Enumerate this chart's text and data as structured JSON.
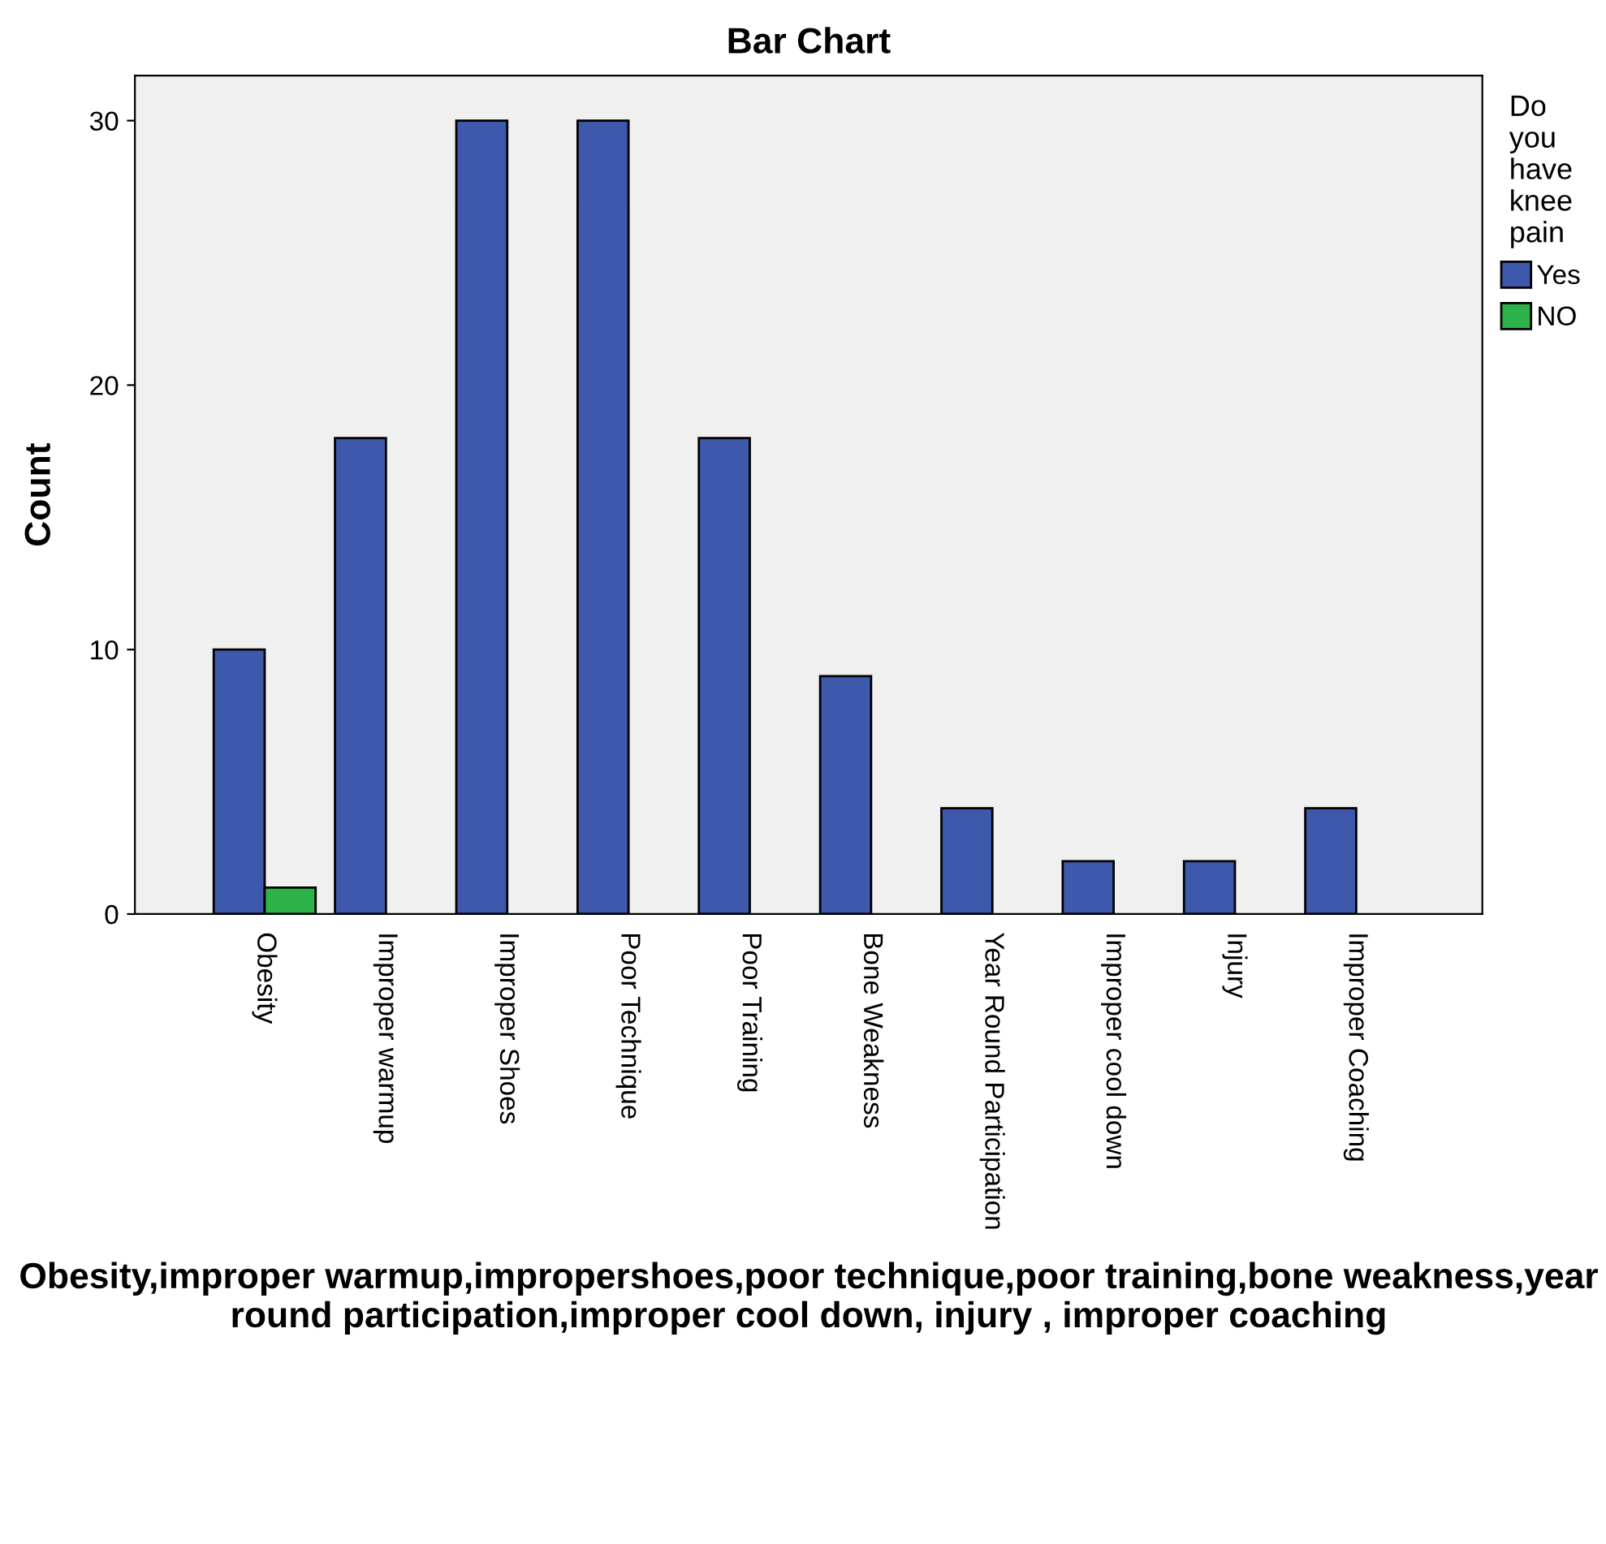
{
  "chart_data": {
    "type": "bar",
    "title": "Bar Chart",
    "ylabel": "Count",
    "xlabel": "Obesity,improper warmup,impropershoes,poor technique,poor training,bone weakness,year round participation,improper cool down, injury , improper coaching",
    "legend_title": "Do you have knee pain",
    "categories": [
      "Obesity",
      "Improper warmup",
      "Improper Shoes",
      "Poor Technique",
      "Poor Training",
      "Bone Weakness",
      "Year Round Participation",
      "Improper cool down",
      "Injury",
      "Improper Coaching"
    ],
    "series": [
      {
        "name": "Yes",
        "color": "#3e58ac",
        "values": [
          10,
          18,
          30,
          30,
          18,
          9,
          4,
          2,
          2,
          4
        ]
      },
      {
        "name": "NO",
        "color": "#2eb34a",
        "values": [
          1,
          null,
          null,
          null,
          null,
          null,
          null,
          null,
          null,
          null
        ]
      }
    ],
    "ylim": [
      0,
      31.7
    ],
    "yticks": [
      0,
      10,
      20,
      30
    ],
    "grid": false,
    "legend": "right"
  }
}
